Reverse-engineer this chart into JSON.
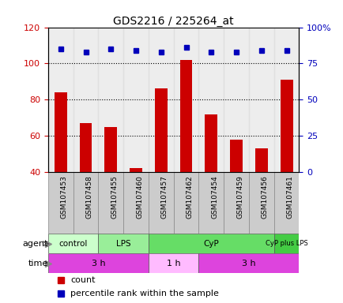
{
  "title": "GDS2216 / 225264_at",
  "samples": [
    "GSM107453",
    "GSM107458",
    "GSM107455",
    "GSM107460",
    "GSM107457",
    "GSM107462",
    "GSM107454",
    "GSM107459",
    "GSM107456",
    "GSM107461"
  ],
  "counts": [
    84,
    67,
    65,
    42,
    86,
    102,
    72,
    58,
    53,
    91
  ],
  "percentiles_pct": [
    85,
    83,
    85,
    84,
    83,
    86,
    83,
    83,
    84,
    84
  ],
  "ylim_left": [
    40,
    120
  ],
  "ylim_right": [
    0,
    100
  ],
  "yticks_left": [
    40,
    60,
    80,
    100,
    120
  ],
  "yticks_right": [
    0,
    25,
    50,
    75,
    100
  ],
  "yticklabels_right": [
    "0",
    "25",
    "50",
    "75",
    "100%"
  ],
  "bar_color": "#cc0000",
  "dot_color": "#0000bb",
  "agent_groups": [
    {
      "label": "control",
      "start": 0,
      "end": 2,
      "color": "#ccffcc"
    },
    {
      "label": "LPS",
      "start": 2,
      "end": 4,
      "color": "#99ee99"
    },
    {
      "label": "CyP",
      "start": 4,
      "end": 9,
      "color": "#66dd66"
    },
    {
      "label": "CyP plus LPS",
      "start": 9,
      "end": 10,
      "color": "#44cc44"
    }
  ],
  "time_groups": [
    {
      "label": "3 h",
      "start": 0,
      "end": 4,
      "color": "#dd44dd"
    },
    {
      "label": "1 h",
      "start": 4,
      "end": 6,
      "color": "#ffbbff"
    },
    {
      "label": "3 h",
      "start": 6,
      "end": 10,
      "color": "#dd44dd"
    }
  ],
  "agent_label": "agent",
  "time_label": "time",
  "legend_count_label": "count",
  "legend_pct_label": "percentile rank within the sample",
  "tick_label_color_left": "#cc0000",
  "tick_label_color_right": "#0000bb",
  "bar_width": 0.5,
  "hgrid_values": [
    60,
    80,
    100
  ],
  "col_bg_color": "#dddddd",
  "col_bg_alpha": 0.5
}
